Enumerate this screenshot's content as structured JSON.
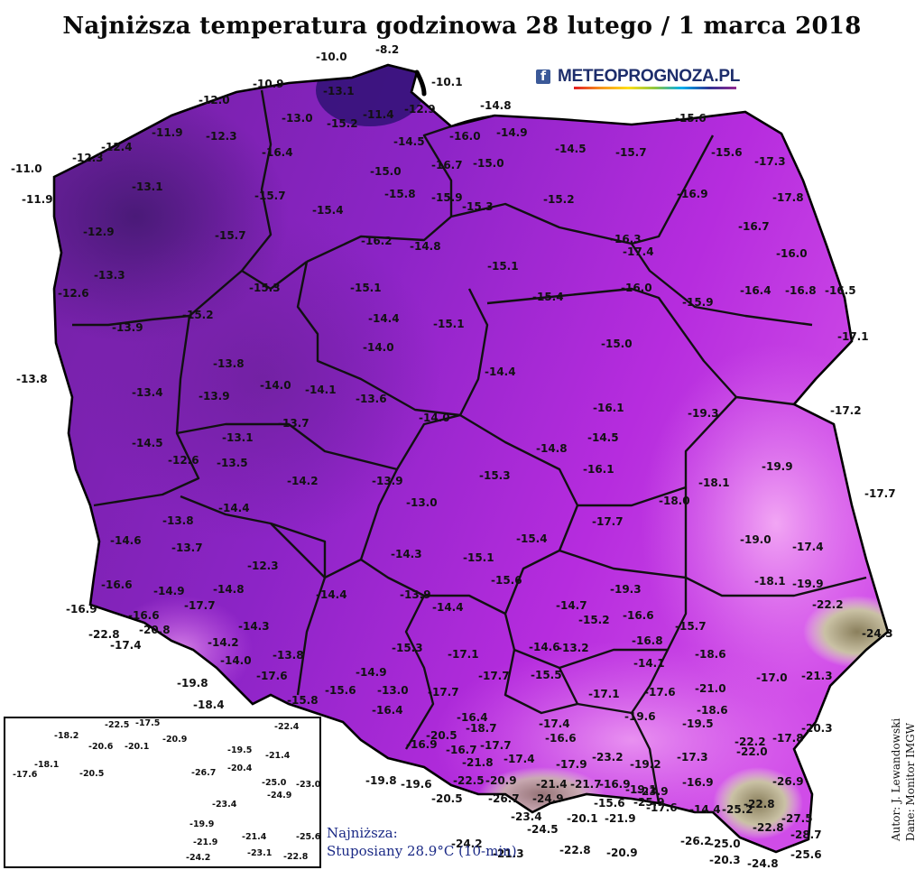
{
  "title": "Najniższa temperatura godzinowa 28 lutego / 1 marca 2018",
  "logo": {
    "facebook_icon": "facebook-icon",
    "text": "METEOPROGNOZA.PL"
  },
  "credit": {
    "line1": "Autor: J. Lewandowski",
    "line2": "Dane: Monitor IMGW"
  },
  "note": {
    "label": "Najniższa:",
    "value": "Stuposiany 28.9°C (10-min)"
  },
  "colors": {
    "deep": "#5a1e8c",
    "mid": "#8a22cc",
    "bright": "#c02ee8",
    "pink": "#e060f0",
    "light": "#f3b8f5",
    "olive": "#b6ad8e",
    "sea": "#ffffff"
  },
  "stations": [
    {
      "v": "-10.0"
    },
    {
      "v": "-8.2"
    },
    {
      "v": "-10.1"
    },
    {
      "v": "-10.9"
    },
    {
      "v": "-13.1"
    },
    {
      "v": "-12.0"
    },
    {
      "v": "-13.0"
    },
    {
      "v": "-11.4"
    },
    {
      "v": "-15.2"
    },
    {
      "v": "-12.9"
    },
    {
      "v": "-14.8"
    },
    {
      "v": "-15.6"
    },
    {
      "v": "-11.9"
    },
    {
      "v": "-12.3"
    },
    {
      "v": "-12.4"
    },
    {
      "v": "-12.3"
    },
    {
      "v": "-16.4"
    },
    {
      "v": "-14.5"
    },
    {
      "v": "-16.0"
    },
    {
      "v": "-14.9"
    },
    {
      "v": "-14.5"
    },
    {
      "v": "-15.7"
    },
    {
      "v": "-15.6"
    },
    {
      "v": "-17.3"
    },
    {
      "v": "-11.0"
    },
    {
      "v": "-13.1"
    },
    {
      "v": "-15.0"
    },
    {
      "v": "-16.7"
    },
    {
      "v": "-15.0"
    },
    {
      "v": "-15.8"
    },
    {
      "v": "-15.9"
    },
    {
      "v": "-15.3"
    },
    {
      "v": "-15.2"
    },
    {
      "v": "-16.9"
    },
    {
      "v": "-17.8"
    },
    {
      "v": "-11.9"
    },
    {
      "v": "-15.7"
    },
    {
      "v": "-15.4"
    },
    {
      "v": "-12.9"
    },
    {
      "v": "-15.7"
    },
    {
      "v": "-16.2"
    },
    {
      "v": "-14.8"
    },
    {
      "v": "-16.3"
    },
    {
      "v": "-16.7"
    },
    {
      "v": "-17.4"
    },
    {
      "v": "-16.0"
    },
    {
      "v": "-13.3"
    },
    {
      "v": "-15.1"
    },
    {
      "v": "-12.6"
    },
    {
      "v": "-15.3"
    },
    {
      "v": "-15.1"
    },
    {
      "v": "-15.4"
    },
    {
      "v": "-16.0"
    },
    {
      "v": "-15.9"
    },
    {
      "v": "-16.4"
    },
    {
      "v": "-16.8"
    },
    {
      "v": "-16.5"
    },
    {
      "v": "-15.2"
    },
    {
      "v": "-14.4"
    },
    {
      "v": "-15.1"
    },
    {
      "v": "-13.9"
    },
    {
      "v": "-14.0"
    },
    {
      "v": "-15.0"
    },
    {
      "v": "-17.1"
    },
    {
      "v": "-13.8"
    },
    {
      "v": "-13.8"
    },
    {
      "v": "-14.0"
    },
    {
      "v": "-14.1"
    },
    {
      "v": "-14.4"
    },
    {
      "v": "-13.4"
    },
    {
      "v": "-13.9"
    },
    {
      "v": "-13.6"
    },
    {
      "v": "-16.1"
    },
    {
      "v": "-19.3"
    },
    {
      "v": "-17.2"
    },
    {
      "v": "-13.7"
    },
    {
      "v": "-14.0"
    },
    {
      "v": "-13.1"
    },
    {
      "v": "-14.5"
    },
    {
      "v": "-14.5"
    },
    {
      "v": "-12.6"
    },
    {
      "v": "-13.5"
    },
    {
      "v": "-14.8"
    },
    {
      "v": "-19.9"
    },
    {
      "v": "-14.2"
    },
    {
      "v": "-13.9"
    },
    {
      "v": "-16.1"
    },
    {
      "v": "-15.3"
    },
    {
      "v": "-18.1"
    },
    {
      "v": "-17.7"
    },
    {
      "v": "-14.4"
    },
    {
      "v": "-13.0"
    },
    {
      "v": "-18.0"
    },
    {
      "v": "-13.8"
    },
    {
      "v": "-14.6"
    },
    {
      "v": "-17.7"
    },
    {
      "v": "-13.7"
    },
    {
      "v": "-15.4"
    },
    {
      "v": "-19.0"
    },
    {
      "v": "-17.4"
    },
    {
      "v": "-12.3"
    },
    {
      "v": "-14.3"
    },
    {
      "v": "-15.1"
    },
    {
      "v": "-15.6"
    },
    {
      "v": "-18.1"
    },
    {
      "v": "-19.9"
    },
    {
      "v": "-16.6"
    },
    {
      "v": "-14.9"
    },
    {
      "v": "-14.8"
    },
    {
      "v": "-14.4"
    },
    {
      "v": "-13.9"
    },
    {
      "v": "-19.3"
    },
    {
      "v": "-16.9"
    },
    {
      "v": "-16.6"
    },
    {
      "v": "-17.7"
    },
    {
      "v": "-14.4"
    },
    {
      "v": "-14.7"
    },
    {
      "v": "-16.6"
    },
    {
      "v": "-22.2"
    },
    {
      "v": "-22.8"
    },
    {
      "v": "-17.4"
    },
    {
      "v": "-20.8"
    },
    {
      "v": "-14.3"
    },
    {
      "v": "-14.6"
    },
    {
      "v": "-16.8"
    },
    {
      "v": "-15.7"
    },
    {
      "v": "-15.2"
    },
    {
      "v": "-24.3"
    },
    {
      "v": "-14.2"
    },
    {
      "v": "-15.3"
    },
    {
      "v": "-17.1"
    },
    {
      "v": "-13.2"
    },
    {
      "v": "-18.6"
    },
    {
      "v": "-14.0"
    },
    {
      "v": "-13.8"
    },
    {
      "v": "-14.1"
    },
    {
      "v": "-19.8"
    },
    {
      "v": "-17.6"
    },
    {
      "v": "-14.9"
    },
    {
      "v": "-17.7"
    },
    {
      "v": "-15.5"
    },
    {
      "v": "-21.0"
    },
    {
      "v": "-17.0"
    },
    {
      "v": "-21.3"
    },
    {
      "v": "-18.4"
    },
    {
      "v": "-15.6"
    },
    {
      "v": "-13.0"
    },
    {
      "v": "-17.7"
    },
    {
      "v": "-17.6"
    },
    {
      "v": "-17.1"
    },
    {
      "v": "-15.8"
    },
    {
      "v": "-16.4"
    },
    {
      "v": "-18.6"
    },
    {
      "v": "-20.3"
    },
    {
      "v": "-19.6"
    },
    {
      "v": "-19.5"
    },
    {
      "v": "-16.4"
    },
    {
      "v": "-17.4"
    },
    {
      "v": "-20.5"
    },
    {
      "v": "-18.7"
    },
    {
      "v": "-17.7"
    },
    {
      "v": "-16.6"
    },
    {
      "v": "-22.2"
    },
    {
      "v": "-17.8"
    },
    {
      "v": "-16.9"
    },
    {
      "v": "-16.7"
    },
    {
      "v": "-22.0"
    },
    {
      "v": "-21.8"
    },
    {
      "v": "-17.4"
    },
    {
      "v": "-17.9"
    },
    {
      "v": "-23.2"
    },
    {
      "v": "-17.3"
    },
    {
      "v": "-19.8"
    },
    {
      "v": "-19.6"
    },
    {
      "v": "-22.5"
    },
    {
      "v": "-20.9"
    },
    {
      "v": "-19.2"
    },
    {
      "v": "-16.9"
    },
    {
      "v": "-26.9"
    },
    {
      "v": "-21.4"
    },
    {
      "v": "-21.7"
    },
    {
      "v": "-16.9"
    },
    {
      "v": "-19.1"
    },
    {
      "v": "-17.6"
    },
    {
      "v": "-20.5"
    },
    {
      "v": "-26.7"
    },
    {
      "v": "-24.9"
    },
    {
      "v": "-22.8"
    },
    {
      "v": "-15.6"
    },
    {
      "v": "-23.9"
    },
    {
      "v": "-14.4"
    },
    {
      "v": "-25.2"
    },
    {
      "v": "-23.4"
    },
    {
      "v": "-27.5"
    },
    {
      "v": "-20.1"
    },
    {
      "v": "-21.9"
    },
    {
      "v": "-25.9"
    },
    {
      "v": "-24.5"
    },
    {
      "v": "-22.8"
    },
    {
      "v": "-28.7"
    },
    {
      "v": "-24.2"
    },
    {
      "v": "-26.2"
    },
    {
      "v": "-25.0"
    },
    {
      "v": "-22.8"
    },
    {
      "v": "-20.9"
    },
    {
      "v": "-21.3"
    },
    {
      "v": "-20.3"
    },
    {
      "v": "-24.8"
    },
    {
      "v": "-25.6"
    }
  ],
  "inset_stations": [
    {
      "v": "-18.2"
    },
    {
      "v": "-22.5"
    },
    {
      "v": "-17.5"
    },
    {
      "v": "-22.4"
    },
    {
      "v": "-20.6"
    },
    {
      "v": "-20.1"
    },
    {
      "v": "-20.9"
    },
    {
      "v": "-19.5"
    },
    {
      "v": "-18.1"
    },
    {
      "v": "-21.4"
    },
    {
      "v": "-17.6"
    },
    {
      "v": "-20.5"
    },
    {
      "v": "-20.4"
    },
    {
      "v": "-26.7"
    },
    {
      "v": "-25.0"
    },
    {
      "v": "-23.0"
    },
    {
      "v": "-24.9"
    },
    {
      "v": "-23.4"
    },
    {
      "v": "-19.9"
    },
    {
      "v": "-25.6"
    },
    {
      "v": "-21.4"
    },
    {
      "v": "-21.9"
    },
    {
      "v": "-24.2"
    },
    {
      "v": "-23.1"
    },
    {
      "v": "-22.8"
    }
  ]
}
